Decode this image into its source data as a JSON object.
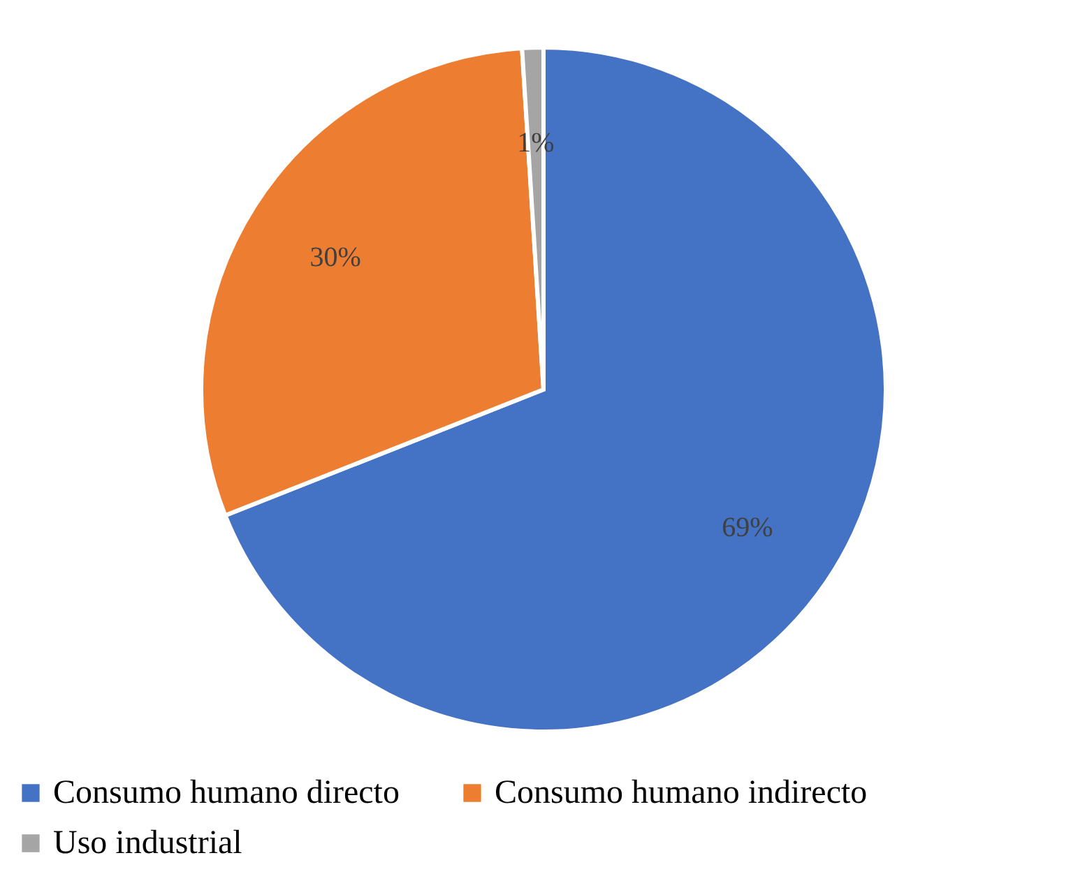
{
  "chart_data": {
    "type": "pie",
    "categories": [
      "Consumo humano directo",
      "Consumo humano indirecto",
      "Uso industrial"
    ],
    "values": [
      69,
      30,
      1
    ],
    "colors": [
      "#4472c4",
      "#ed7d31",
      "#a5a5a5"
    ],
    "value_labels": [
      "69%",
      "30%",
      "1%"
    ],
    "legend": "bottom"
  }
}
